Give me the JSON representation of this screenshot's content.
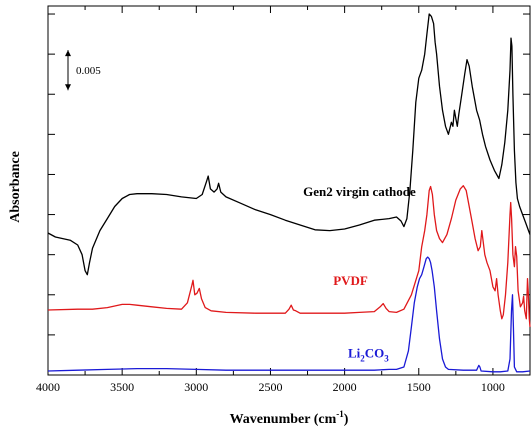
{
  "chart_data": {
    "type": "line",
    "title": "",
    "xlabel_main": "Wavenumber (cm",
    "xlabel_sup": "-1",
    "xlabel_end": ")",
    "ylabel": "Absorbance",
    "xlim": [
      4000,
      750
    ],
    "x_reversed": true,
    "xticks": [
      4000,
      3500,
      3000,
      2500,
      2000,
      1500,
      1000
    ],
    "xtick_labels": [
      "4000",
      "3500",
      "3000",
      "2500",
      "2000",
      "1500",
      "1000"
    ],
    "ylim": [
      0,
      0.046
    ],
    "y_tick_step": 0.005,
    "y_tick_labels_shown": false,
    "grid": false,
    "scale_bar": {
      "label": "0.005",
      "value": 0.005,
      "y_start": 0.0405
    },
    "series": [
      {
        "name": "Gen2 virgin cathode",
        "label_parts": [
          "Gen2 virgin cathode"
        ],
        "color": "#000000",
        "label_at": [
          1900,
          0.0223
        ],
        "points": [
          [
            4000,
            0.0177
          ],
          [
            3950,
            0.0172
          ],
          [
            3900,
            0.017
          ],
          [
            3850,
            0.0168
          ],
          [
            3800,
            0.0162
          ],
          [
            3770,
            0.015
          ],
          [
            3750,
            0.013
          ],
          [
            3735,
            0.0125
          ],
          [
            3720,
            0.014
          ],
          [
            3700,
            0.0158
          ],
          [
            3650,
            0.018
          ],
          [
            3600,
            0.0195
          ],
          [
            3550,
            0.021
          ],
          [
            3500,
            0.022
          ],
          [
            3450,
            0.0225
          ],
          [
            3400,
            0.0226
          ],
          [
            3300,
            0.0226
          ],
          [
            3200,
            0.0225
          ],
          [
            3100,
            0.0222
          ],
          [
            3000,
            0.022
          ],
          [
            2960,
            0.0225
          ],
          [
            2930,
            0.0242
          ],
          [
            2920,
            0.0248
          ],
          [
            2905,
            0.0232
          ],
          [
            2880,
            0.0228
          ],
          [
            2860,
            0.0232
          ],
          [
            2850,
            0.0239
          ],
          [
            2835,
            0.0228
          ],
          [
            2800,
            0.0222
          ],
          [
            2700,
            0.0214
          ],
          [
            2600,
            0.0206
          ],
          [
            2500,
            0.02
          ],
          [
            2400,
            0.0193
          ],
          [
            2300,
            0.0187
          ],
          [
            2200,
            0.0181
          ],
          [
            2100,
            0.018
          ],
          [
            2000,
            0.0182
          ],
          [
            1900,
            0.0187
          ],
          [
            1800,
            0.0193
          ],
          [
            1700,
            0.0195
          ],
          [
            1650,
            0.0197
          ],
          [
            1620,
            0.0192
          ],
          [
            1600,
            0.0185
          ],
          [
            1580,
            0.0195
          ],
          [
            1560,
            0.023
          ],
          [
            1540,
            0.028
          ],
          [
            1520,
            0.034
          ],
          [
            1500,
            0.037
          ],
          [
            1480,
            0.038
          ],
          [
            1460,
            0.04
          ],
          [
            1445,
            0.0425
          ],
          [
            1430,
            0.045
          ],
          [
            1415,
            0.0447
          ],
          [
            1400,
            0.0438
          ],
          [
            1390,
            0.0415
          ],
          [
            1380,
            0.04
          ],
          [
            1360,
            0.036
          ],
          [
            1340,
            0.033
          ],
          [
            1320,
            0.031
          ],
          [
            1300,
            0.03
          ],
          [
            1280,
            0.0315
          ],
          [
            1270,
            0.031
          ],
          [
            1260,
            0.033
          ],
          [
            1250,
            0.032
          ],
          [
            1240,
            0.031
          ],
          [
            1230,
            0.0325
          ],
          [
            1210,
            0.035
          ],
          [
            1190,
            0.0375
          ],
          [
            1175,
            0.0393
          ],
          [
            1160,
            0.0385
          ],
          [
            1140,
            0.036
          ],
          [
            1110,
            0.033
          ],
          [
            1090,
            0.0318
          ],
          [
            1070,
            0.03
          ],
          [
            1050,
            0.0285
          ],
          [
            1020,
            0.0268
          ],
          [
            990,
            0.0255
          ],
          [
            960,
            0.0245
          ],
          [
            940,
            0.0262
          ],
          [
            920,
            0.029
          ],
          [
            900,
            0.033
          ],
          [
            885,
            0.038
          ],
          [
            878,
            0.042
          ],
          [
            872,
            0.041
          ],
          [
            865,
            0.035
          ],
          [
            855,
            0.028
          ],
          [
            845,
            0.024
          ],
          [
            835,
            0.022
          ],
          [
            820,
            0.021
          ],
          [
            800,
            0.02
          ],
          [
            780,
            0.019
          ],
          [
            760,
            0.018
          ],
          [
            750,
            0.0175
          ]
        ]
      },
      {
        "name": "PVDF",
        "label_parts": [
          "PVDF"
        ],
        "color": "#e0191b",
        "label_at": [
          1960,
          0.0112
        ],
        "points": [
          [
            4000,
            0.0081
          ],
          [
            3800,
            0.0082
          ],
          [
            3700,
            0.0082
          ],
          [
            3600,
            0.0084
          ],
          [
            3500,
            0.0088
          ],
          [
            3450,
            0.0088
          ],
          [
            3400,
            0.0087
          ],
          [
            3300,
            0.0085
          ],
          [
            3200,
            0.0083
          ],
          [
            3100,
            0.0082
          ],
          [
            3060,
            0.009
          ],
          [
            3030,
            0.0112
          ],
          [
            3022,
            0.0118
          ],
          [
            3010,
            0.01
          ],
          [
            2995,
            0.0102
          ],
          [
            2980,
            0.0108
          ],
          [
            2965,
            0.0095
          ],
          [
            2940,
            0.0084
          ],
          [
            2900,
            0.008
          ],
          [
            2800,
            0.0078
          ],
          [
            2600,
            0.0077
          ],
          [
            2400,
            0.0077
          ],
          [
            2375,
            0.0082
          ],
          [
            2360,
            0.0087
          ],
          [
            2345,
            0.0081
          ],
          [
            2330,
            0.008
          ],
          [
            2300,
            0.0077
          ],
          [
            2200,
            0.0077
          ],
          [
            2000,
            0.0077
          ],
          [
            1900,
            0.0078
          ],
          [
            1800,
            0.0079
          ],
          [
            1760,
            0.0085
          ],
          [
            1740,
            0.0089
          ],
          [
            1720,
            0.0083
          ],
          [
            1700,
            0.0079
          ],
          [
            1650,
            0.0078
          ],
          [
            1600,
            0.0082
          ],
          [
            1550,
            0.01
          ],
          [
            1500,
            0.013
          ],
          [
            1480,
            0.016
          ],
          [
            1460,
            0.018
          ],
          [
            1445,
            0.02
          ],
          [
            1430,
            0.023
          ],
          [
            1420,
            0.0235
          ],
          [
            1408,
            0.0225
          ],
          [
            1395,
            0.02
          ],
          [
            1380,
            0.018
          ],
          [
            1360,
            0.017
          ],
          [
            1340,
            0.0165
          ],
          [
            1310,
            0.0175
          ],
          [
            1280,
            0.0195
          ],
          [
            1250,
            0.0218
          ],
          [
            1220,
            0.0232
          ],
          [
            1200,
            0.0236
          ],
          [
            1180,
            0.023
          ],
          [
            1160,
            0.021
          ],
          [
            1140,
            0.019
          ],
          [
            1120,
            0.017
          ],
          [
            1100,
            0.0155
          ],
          [
            1085,
            0.016
          ],
          [
            1075,
            0.018
          ],
          [
            1068,
            0.017
          ],
          [
            1055,
            0.015
          ],
          [
            1040,
            0.014
          ],
          [
            1020,
            0.013
          ],
          [
            1000,
            0.011
          ],
          [
            985,
            0.0105
          ],
          [
            975,
            0.012
          ],
          [
            965,
            0.01
          ],
          [
            950,
            0.008
          ],
          [
            940,
            0.007
          ],
          [
            930,
            0.0075
          ],
          [
            915,
            0.01
          ],
          [
            900,
            0.014
          ],
          [
            885,
            0.02
          ],
          [
            880,
            0.0215
          ],
          [
            874,
            0.0195
          ],
          [
            865,
            0.015
          ],
          [
            855,
            0.0135
          ],
          [
            848,
            0.016
          ],
          [
            840,
            0.0148
          ],
          [
            830,
            0.0105
          ],
          [
            815,
            0.0085
          ],
          [
            800,
            0.009
          ],
          [
            793,
            0.0098
          ],
          [
            786,
            0.008
          ],
          [
            775,
            0.007
          ],
          [
            767,
            0.012
          ],
          [
            762,
            0.0105
          ],
          [
            755,
            0.007
          ],
          [
            750,
            0.006
          ]
        ]
      },
      {
        "name": "Li2CO3",
        "label_parts": [
          "Li",
          "2",
          "CO",
          "3"
        ],
        "color": "#1a1ad6",
        "label_at": [
          1840,
          0.0022
        ],
        "points": [
          [
            4000,
            0.0005
          ],
          [
            3800,
            0.0006
          ],
          [
            3600,
            0.0007
          ],
          [
            3400,
            0.0008
          ],
          [
            3200,
            0.0008
          ],
          [
            3000,
            0.0007
          ],
          [
            2800,
            0.0006
          ],
          [
            2600,
            0.0006
          ],
          [
            2400,
            0.0006
          ],
          [
            2200,
            0.0006
          ],
          [
            2000,
            0.0006
          ],
          [
            1800,
            0.0006
          ],
          [
            1700,
            0.0007
          ],
          [
            1650,
            0.0007
          ],
          [
            1600,
            0.001
          ],
          [
            1570,
            0.003
          ],
          [
            1550,
            0.006
          ],
          [
            1530,
            0.009
          ],
          [
            1510,
            0.011
          ],
          [
            1495,
            0.012
          ],
          [
            1480,
            0.0125
          ],
          [
            1465,
            0.0135
          ],
          [
            1450,
            0.0145
          ],
          [
            1440,
            0.0147
          ],
          [
            1430,
            0.0145
          ],
          [
            1420,
            0.014
          ],
          [
            1410,
            0.013
          ],
          [
            1395,
            0.011
          ],
          [
            1380,
            0.008
          ],
          [
            1360,
            0.0045
          ],
          [
            1340,
            0.002
          ],
          [
            1320,
            0.001
          ],
          [
            1300,
            0.0007
          ],
          [
            1200,
            0.0006
          ],
          [
            1110,
            0.0006
          ],
          [
            1095,
            0.0012
          ],
          [
            1088,
            0.001
          ],
          [
            1080,
            0.0005
          ],
          [
            1000,
            0.0004
          ],
          [
            950,
            0.0004
          ],
          [
            900,
            0.0005
          ],
          [
            885,
            0.002
          ],
          [
            875,
            0.008
          ],
          [
            868,
            0.01
          ],
          [
            862,
            0.006
          ],
          [
            855,
            0.001
          ],
          [
            840,
            0.0004
          ],
          [
            800,
            0.0004
          ],
          [
            750,
            0.0005
          ]
        ]
      }
    ]
  }
}
